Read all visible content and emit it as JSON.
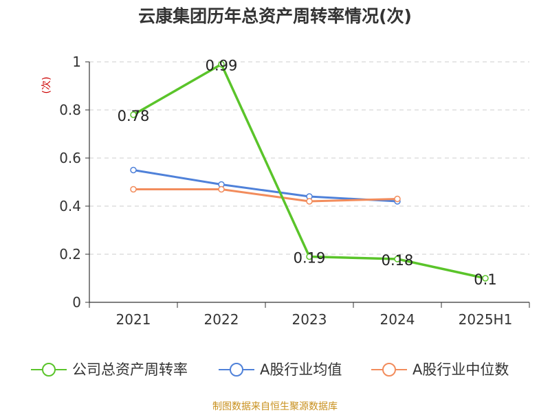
{
  "chart_data": {
    "type": "line",
    "title": "云康集团历年总资产周转率情况(次)",
    "ylabel": "(次)",
    "categories": [
      "2021",
      "2022",
      "2023",
      "2024",
      "2025H1"
    ],
    "ylim": [
      0,
      1
    ],
    "yticks": [
      0,
      0.2,
      0.4,
      0.6,
      0.8,
      1
    ],
    "ytick_labels": [
      "0",
      "0.2",
      "0.4",
      "0.6",
      "0.8",
      "1"
    ],
    "grid": true,
    "legend_position": "bottom",
    "series": [
      {
        "name": "公司总资产周转率",
        "color": "#5ac42a",
        "values": [
          0.78,
          0.99,
          0.19,
          0.18,
          0.1
        ],
        "data_labels": [
          "0.78",
          "0.99",
          "0.19",
          "0.18",
          "0.1"
        ]
      },
      {
        "name": "A股行业均值",
        "color": "#4f81d9",
        "values": [
          0.55,
          0.49,
          0.44,
          0.42,
          null
        ]
      },
      {
        "name": "A股行业中位数",
        "color": "#f28c5c",
        "values": [
          0.47,
          0.47,
          0.42,
          0.43,
          null
        ]
      }
    ],
    "source": "制图数据来自恒生聚源数据库"
  }
}
